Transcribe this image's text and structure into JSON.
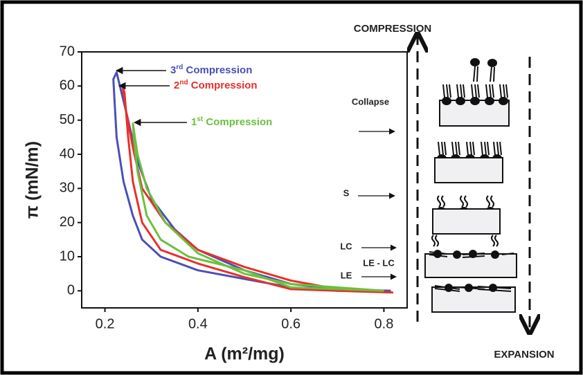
{
  "chart_data": {
    "type": "line",
    "x_label": "A (m²/mg)",
    "y_label": "π (mN/m)",
    "xlim": [
      0.15,
      0.85
    ],
    "ylim": [
      -5,
      70
    ],
    "xticks": [
      0.2,
      0.4,
      0.6,
      0.8
    ],
    "yticks": [
      0,
      10,
      20,
      30,
      40,
      50,
      60,
      70
    ],
    "series": [
      {
        "name": "3rd Compression",
        "color": "#4a4fb6",
        "x": [
          0.815,
          0.7,
          0.6,
          0.5,
          0.4,
          0.35,
          0.3,
          0.27,
          0.25,
          0.225,
          0.218,
          0.225,
          0.24,
          0.26,
          0.28,
          0.32,
          0.4,
          0.5,
          0.6,
          0.7,
          0.815
        ],
        "values": [
          0,
          0.5,
          2,
          6,
          12,
          18,
          27,
          38,
          50,
          64,
          62,
          45,
          32,
          22,
          15,
          10,
          6,
          3.5,
          1,
          0,
          0
        ]
      },
      {
        "name": "2nd Compression",
        "color": "#e8302a",
        "x": [
          0.82,
          0.7,
          0.6,
          0.5,
          0.4,
          0.33,
          0.28,
          0.26,
          0.245,
          0.238,
          0.242,
          0.25,
          0.26,
          0.28,
          0.32,
          0.4,
          0.5,
          0.6,
          0.7,
          0.82
        ],
        "values": [
          -0.5,
          0.5,
          3,
          7,
          12,
          20,
          30,
          42,
          53,
          60,
          58,
          45,
          32,
          20,
          12,
          8,
          4,
          0.5,
          0,
          -0.5
        ]
      },
      {
        "name": "1st Compression",
        "color": "#6cbf3f",
        "x": [
          0.8,
          0.6,
          0.5,
          0.4,
          0.33,
          0.29,
          0.27,
          0.26,
          0.262,
          0.27,
          0.29,
          0.32,
          0.38,
          0.5,
          0.6,
          0.8
        ],
        "values": [
          0,
          2,
          5,
          11,
          20,
          30,
          40,
          49,
          45,
          35,
          22,
          15,
          10,
          6,
          1,
          0
        ]
      }
    ],
    "side_labels": {
      "compression": "COMPRESSION",
      "expansion": "EXPANSION",
      "collapse": "Collapse",
      "s": "S",
      "lc": "LC",
      "le_lc": "LE - LC",
      "le": "LE"
    }
  }
}
